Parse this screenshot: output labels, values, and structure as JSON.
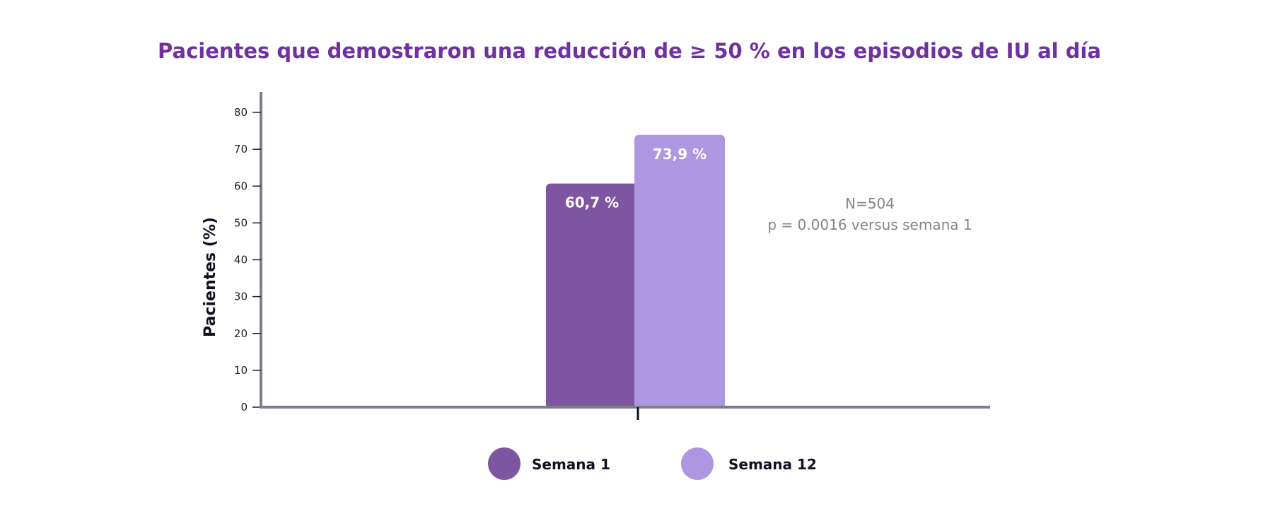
{
  "chart_data": {
    "type": "bar",
    "title": "Pacientes que demostraron una reducción de ≥ 50 % en los episodios de IU al día",
    "xlabel": "",
    "ylabel": "Pacientes (%)",
    "ylim": [
      0,
      85
    ],
    "yticks": [
      0,
      10,
      20,
      30,
      40,
      50,
      60,
      70,
      80
    ],
    "grid": false,
    "categories": [
      ""
    ],
    "series": [
      {
        "name": "Semana 1",
        "values": [
          60.7
        ],
        "label": "60,7 %",
        "color": "#7e55a0"
      },
      {
        "name": "Semana 12",
        "values": [
          73.9
        ],
        "label": "73,9 %",
        "color": "#ad97e0"
      }
    ],
    "annotations": [
      "N=504",
      "p = 0.0016 versus semana 1"
    ],
    "legend_position": "bottom-center",
    "axis_color": "#7d7d8c"
  }
}
